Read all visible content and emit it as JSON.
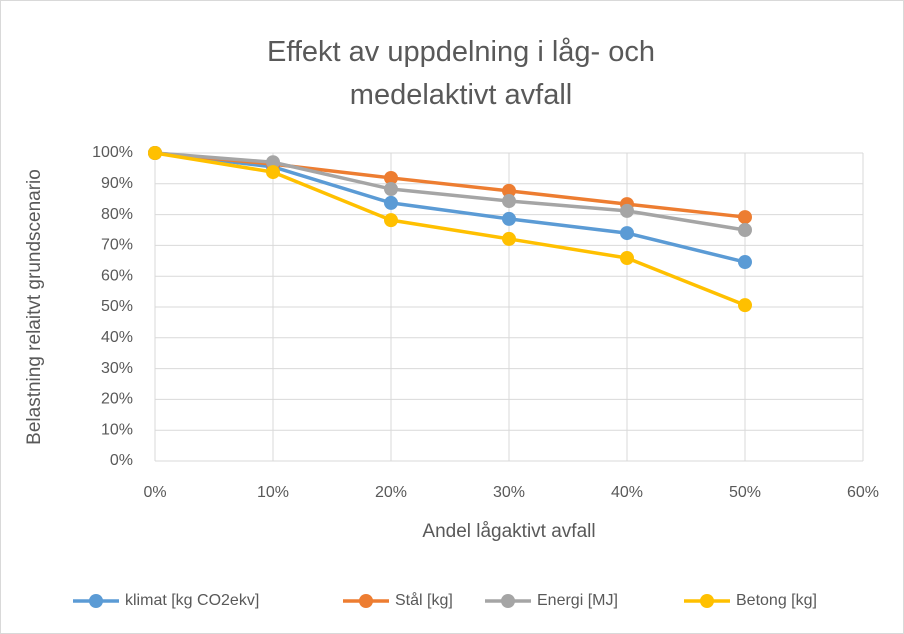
{
  "chart_data": {
    "type": "line",
    "title": "Effekt av uppdelning i låg- och medelaktivt avfall",
    "x_label": "Andel lågaktivt avfall",
    "y_label": "Belastning relaitvt grundscenario",
    "x": [
      0,
      10,
      20,
      30,
      40,
      50
    ],
    "series": [
      {
        "name": "klimat [kg CO2ekv]",
        "color": "#5b9bd5",
        "values": [
          100,
          95.5,
          83.8,
          78.6,
          74,
          64.6
        ]
      },
      {
        "name": "Stål [kg]",
        "color": "#ed7d31",
        "values": [
          100,
          96.4,
          91.9,
          87.7,
          83.4,
          79.2
        ]
      },
      {
        "name": "Energi [MJ]",
        "color": "#a5a5a5",
        "values": [
          100,
          97,
          88.3,
          84.4,
          81.2,
          75
        ]
      },
      {
        "name": "Betong [kg]",
        "color": "#ffc000",
        "values": [
          100,
          93.8,
          78.2,
          72.1,
          65.9,
          50.6
        ]
      }
    ],
    "xlim": [
      0,
      60
    ],
    "xticks": [
      {
        "value": 0,
        "label": "0%"
      },
      {
        "value": 10,
        "label": "10%"
      },
      {
        "value": 20,
        "label": "20%"
      },
      {
        "value": 30,
        "label": "30%"
      },
      {
        "value": 40,
        "label": "40%"
      },
      {
        "value": 50,
        "label": "50%"
      },
      {
        "value": 60,
        "label": "60%"
      }
    ],
    "ylim": [
      0,
      100
    ],
    "yticks": [
      {
        "value": 0,
        "label": "0%"
      },
      {
        "value": 10,
        "label": "10%"
      },
      {
        "value": 20,
        "label": "20%"
      },
      {
        "value": 30,
        "label": "30%"
      },
      {
        "value": 40,
        "label": "40%"
      },
      {
        "value": 50,
        "label": "50%"
      },
      {
        "value": 60,
        "label": "60%"
      },
      {
        "value": 70,
        "label": "70%"
      },
      {
        "value": 80,
        "label": "80%"
      },
      {
        "value": 90,
        "label": "90%"
      },
      {
        "value": 100,
        "label": "100%"
      }
    ],
    "grid": true,
    "legend": "bottom"
  }
}
